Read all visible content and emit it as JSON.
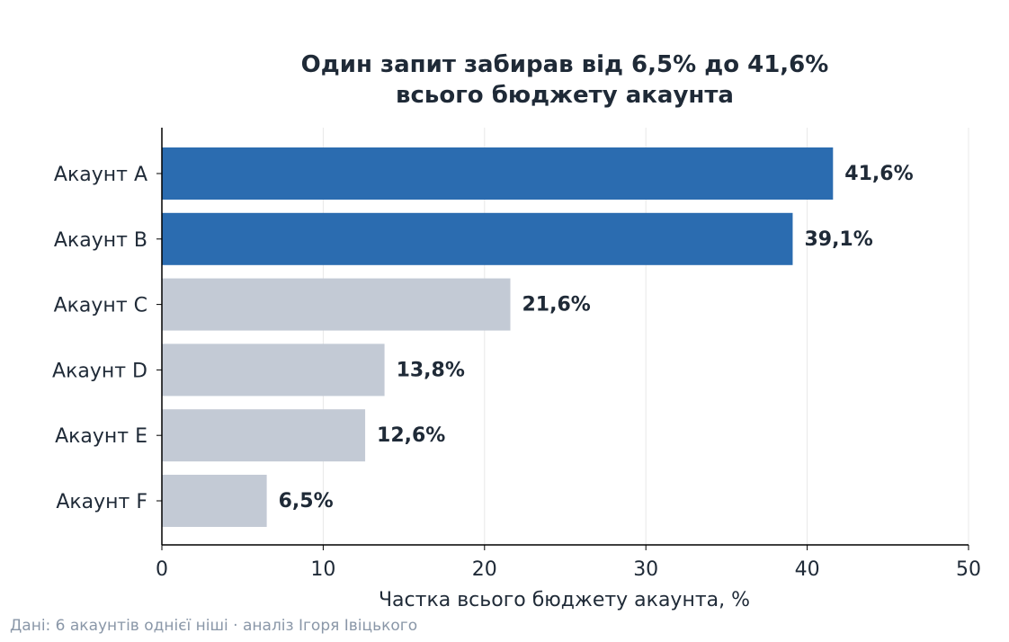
{
  "chart_data": {
    "type": "bar",
    "orientation": "horizontal",
    "title": "Один запит забирав від 6,5% до 41,6%\nвсього бюджету акаунта",
    "xlabel": "Частка всього бюджету акаунта, %",
    "ylabel": "",
    "xlim": [
      0,
      50
    ],
    "xticks": [
      0,
      10,
      20,
      30,
      40,
      50
    ],
    "grid": "vertical",
    "categories": [
      "Акаунт A",
      "Акаунт B",
      "Акаунт C",
      "Акаунт D",
      "Акаунт E",
      "Акаунт F"
    ],
    "values": [
      41.6,
      39.1,
      21.6,
      13.8,
      12.6,
      6.5
    ],
    "value_labels": [
      "41,6%",
      "39,1%",
      "21,6%",
      "13,8%",
      "12,6%",
      "6,5%"
    ],
    "highlighted": [
      true,
      true,
      false,
      false,
      false,
      false
    ],
    "colors": {
      "highlight": "#2b6cb0",
      "default": "#c3cad5",
      "text": "#1f2a37",
      "grid": "#e8e8e8",
      "source": "#8a97a8"
    }
  },
  "footer": {
    "source": "Дані: 6 акаунтів однієї ніші · аналіз Ігоря Івіцького"
  }
}
